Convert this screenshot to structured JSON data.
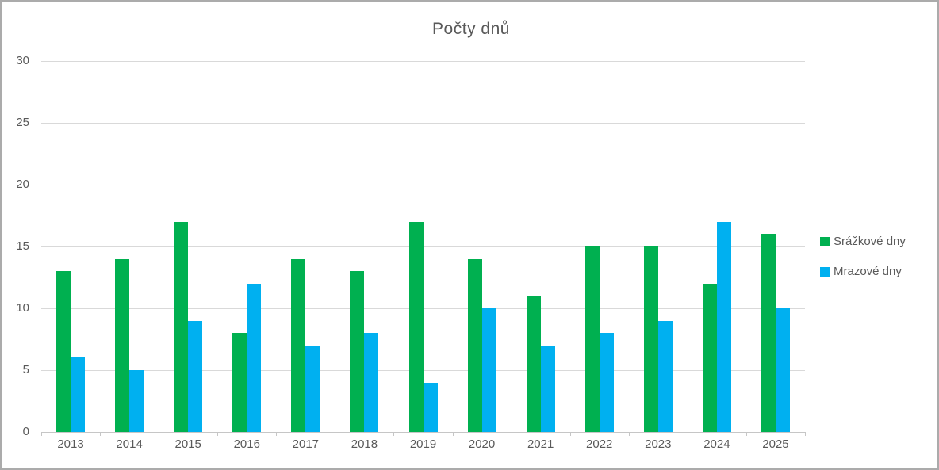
{
  "frame": {
    "background_color": "#FFFFFF",
    "border_color": "#ABABAB"
  },
  "chart_data": {
    "type": "bar",
    "title": "Počty dnů",
    "categories": [
      "2013",
      "2014",
      "2015",
      "2016",
      "2017",
      "2018",
      "2019",
      "2020",
      "2021",
      "2022",
      "2023",
      "2024",
      "2025"
    ],
    "series": [
      {
        "name": "Srážkové dny",
        "color": "#00B050",
        "values": [
          13,
          14,
          17,
          8,
          14,
          13,
          17,
          14,
          11,
          15,
          15,
          12,
          16
        ]
      },
      {
        "name": "Mrazové dny",
        "color": "#00B0F0",
        "values": [
          6,
          5,
          9,
          12,
          7,
          8,
          4,
          10,
          7,
          8,
          9,
          17,
          10
        ]
      }
    ],
    "xlabel": "",
    "ylabel": "",
    "ylim": [
      0,
      30
    ],
    "yticks": [
      0,
      5,
      10,
      15,
      20,
      25,
      30
    ],
    "grid": true,
    "legend_position": "right",
    "text_color": "#595959",
    "gridline_color": "#D9D9D9",
    "axis_color": "#C6C6C6"
  }
}
